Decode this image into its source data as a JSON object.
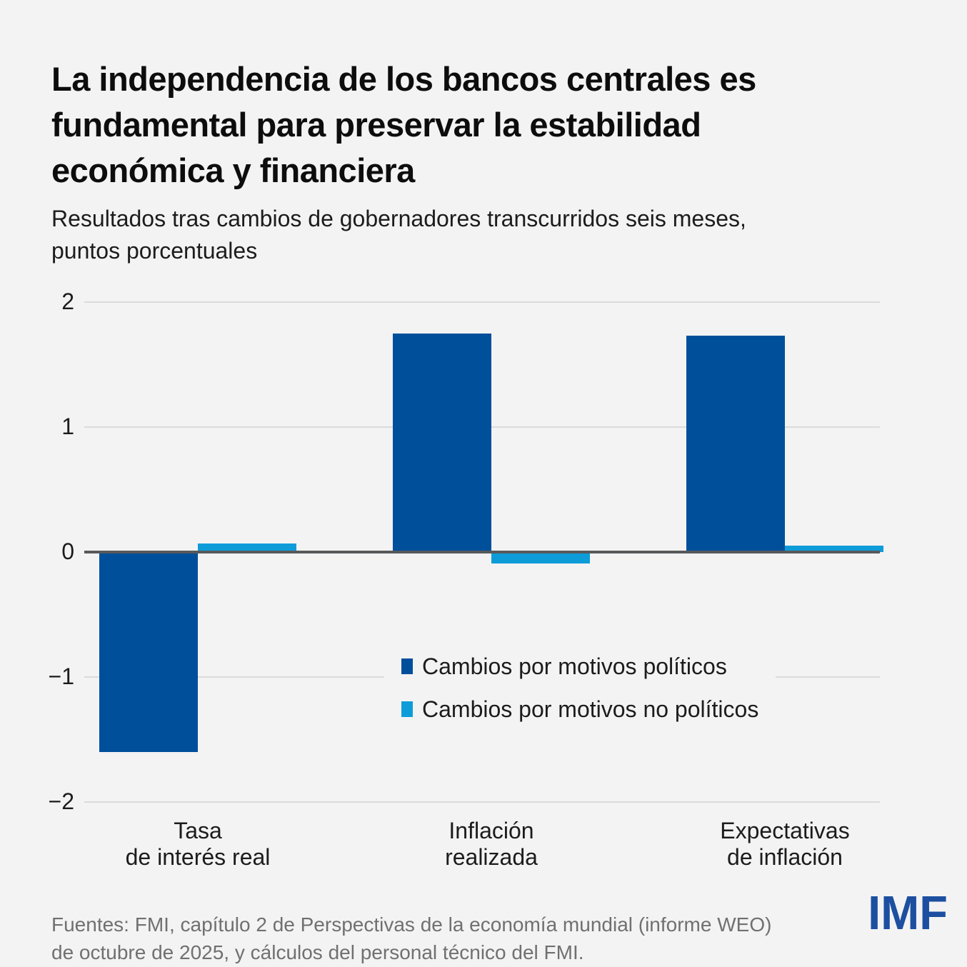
{
  "chart_data": {
    "type": "bar",
    "title": "La independencia de los bancos centrales es\nfundamental para preservar la estabilidad\neconómica y financiera",
    "subtitle": "Resultados tras cambios de gobernadores transcurridos seis meses,\npuntos porcentuales",
    "categories": [
      "Tasa\nde interés real",
      "Inflación\nrealizada",
      "Expectativas\nde inflación"
    ],
    "series": [
      {
        "name": "Cambios por motivos políticos",
        "color": "#004F9B",
        "values": [
          -1.6,
          1.75,
          1.73
        ]
      },
      {
        "name": "Cambios por motivos no políticos",
        "color": "#0E9CD9",
        "values": [
          0.07,
          -0.09,
          0.05
        ]
      }
    ],
    "ylabel": "",
    "xlabel": "",
    "ylim": [
      -2,
      2
    ],
    "yticks": [
      2,
      1,
      0,
      -1,
      -2
    ],
    "grid": true,
    "legend_position": "inside-center"
  },
  "footer": {
    "source": "Fuentes: FMI, capítulo 2 de Perspectivas de la economía mundial (informe WEO)\nde octubre de 2025, y cálculos del personal técnico del FMI.",
    "logo_text": "IMF"
  },
  "colors": {
    "background": "#F3F3F4",
    "gridline": "#DBDBDB",
    "zero_line": "#58595B",
    "title_text": "#0D0D0D",
    "body_text": "#1C1C1C",
    "source_text": "#707070",
    "logo_blue": "#1C4FA0"
  }
}
